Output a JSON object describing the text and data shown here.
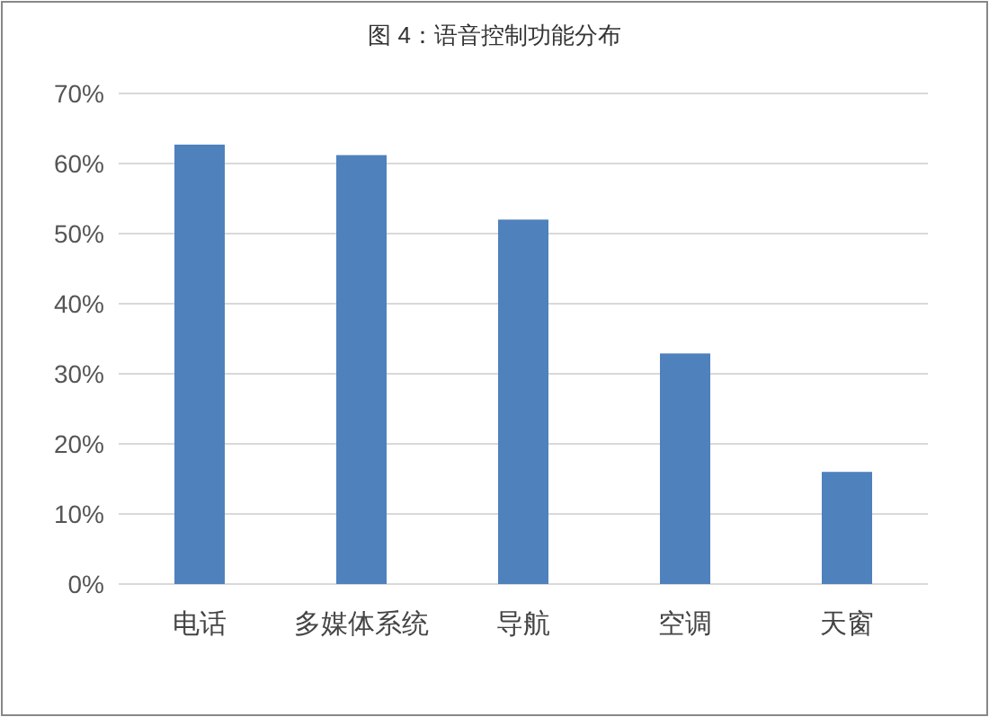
{
  "chart_data": {
    "type": "bar",
    "title": "图 4：语音控制功能分布",
    "categories": [
      "电话",
      "多媒体系统",
      "导航",
      "空调",
      "天窗"
    ],
    "values": [
      62.7,
      61.2,
      52.0,
      32.9,
      16.0
    ],
    "color": "#4f81bd",
    "ylim": [
      0,
      70
    ],
    "yticks": [
      {
        "value": 0,
        "label": "0%"
      },
      {
        "value": 10,
        "label": "10%"
      },
      {
        "value": 20,
        "label": "20%"
      },
      {
        "value": 30,
        "label": "30%"
      },
      {
        "value": 40,
        "label": "40%"
      },
      {
        "value": 50,
        "label": "50%"
      },
      {
        "value": 60,
        "label": "60%"
      },
      {
        "value": 70,
        "label": "70%"
      }
    ],
    "grid": "y"
  }
}
